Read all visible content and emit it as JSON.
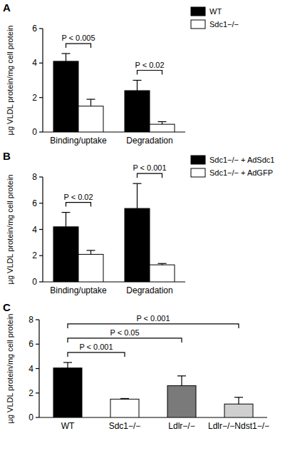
{
  "chart_data": [
    {
      "type": "bar",
      "title": "A",
      "y_label": "µg VLDL protein/mg cell protein",
      "categories": [
        "Binding/uptake",
        "Degradation"
      ],
      "series": [
        {
          "name": "WT",
          "color": "#000000",
          "values": [
            4.1,
            2.4
          ],
          "errors": [
            0.45,
            0.6
          ]
        },
        {
          "name": "Sdc1−/−",
          "color": "#ffffff",
          "values": [
            1.5,
            0.45
          ],
          "errors": [
            0.4,
            0.15
          ]
        }
      ],
      "ylim": [
        0,
        6
      ],
      "yticks": [
        0,
        2,
        4,
        6
      ],
      "legend": "right",
      "annotations": [
        "P < 0.005",
        "P < 0.02"
      ]
    },
    {
      "type": "bar",
      "title": "B",
      "y_label": "µg VLDL protein/mg cell protein",
      "categories": [
        "Binding/uptake",
        "Degradation"
      ],
      "series": [
        {
          "name": "Sdc1−/− + AdSdc1",
          "color": "#000000",
          "values": [
            4.2,
            5.6
          ],
          "errors": [
            1.1,
            1.9
          ]
        },
        {
          "name": "Sdc1−/− + AdGFP",
          "color": "#ffffff",
          "values": [
            2.1,
            1.3
          ],
          "errors": [
            0.3,
            0.1
          ]
        }
      ],
      "ylim": [
        0,
        8
      ],
      "yticks": [
        0,
        2,
        4,
        6,
        8
      ],
      "legend": "right",
      "annotations": [
        "P < 0.02",
        "P < 0.001"
      ]
    },
    {
      "type": "bar",
      "title": "C",
      "y_label": "µg VLDL protein/mg cell protein",
      "categories": [
        "WT",
        "Sdc1−/−",
        "Ldlr−/−",
        "Ldlr−/−Ndst1−/−"
      ],
      "values": [
        4.05,
        1.5,
        2.6,
        1.1
      ],
      "errors": [
        0.45,
        0.05,
        0.8,
        0.55
      ],
      "colors": [
        "#000000",
        "#ffffff",
        "#7a7a7a",
        "#cfcfcf"
      ],
      "ylim": [
        0,
        8
      ],
      "yticks": [
        0,
        2,
        4,
        6,
        8
      ],
      "annotations": [
        "P < 0.001",
        "P < 0.05",
        "P < 0.001"
      ]
    }
  ]
}
